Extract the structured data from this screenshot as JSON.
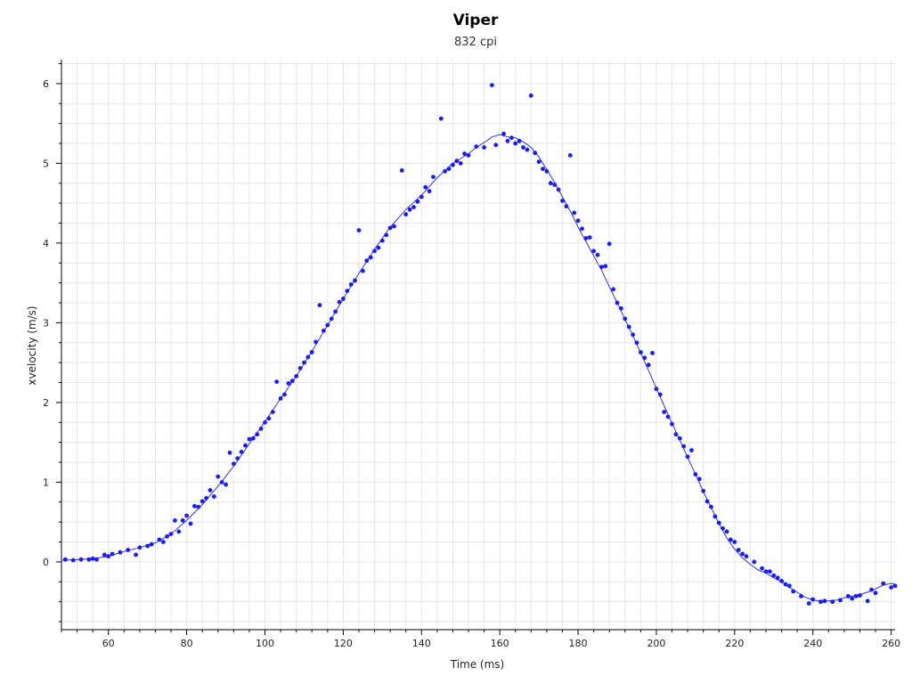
{
  "chart_data": {
    "type": "scatter",
    "title": "Viper",
    "subtitle": "832 cpi",
    "xlabel": "Time (ms)",
    "ylabel": "xvelocity (m/s)",
    "xlim": [
      48,
      261
    ],
    "ylim": [
      -0.85,
      6.3
    ],
    "xticks": [
      60,
      80,
      100,
      120,
      140,
      160,
      180,
      200,
      220,
      240,
      260
    ],
    "yticks": [
      0,
      1,
      2,
      3,
      4,
      5,
      6
    ],
    "grid": true,
    "colors": {
      "points": "#1a1aff",
      "line": "#3333cc",
      "grid": "#e6e6e6",
      "axis": "#000000"
    },
    "series": [
      {
        "type": "scatter",
        "points": [
          [
            49,
            0.03
          ],
          [
            51,
            0.02
          ],
          [
            53,
            0.03
          ],
          [
            55,
            0.03
          ],
          [
            56,
            0.04
          ],
          [
            57,
            0.03
          ],
          [
            59,
            0.09
          ],
          [
            60,
            0.07
          ],
          [
            61,
            0.1
          ],
          [
            63,
            0.12
          ],
          [
            65,
            0.15
          ],
          [
            67,
            0.09
          ],
          [
            68,
            0.18
          ],
          [
            70,
            0.2
          ],
          [
            71,
            0.22
          ],
          [
            73,
            0.28
          ],
          [
            74,
            0.25
          ],
          [
            75,
            0.32
          ],
          [
            76,
            0.35
          ],
          [
            77,
            0.52
          ],
          [
            78,
            0.38
          ],
          [
            79,
            0.52
          ],
          [
            80,
            0.58
          ],
          [
            81,
            0.48
          ],
          [
            82,
            0.7
          ],
          [
            83,
            0.69
          ],
          [
            84,
            0.76
          ],
          [
            85,
            0.8
          ],
          [
            86,
            0.9
          ],
          [
            87,
            0.82
          ],
          [
            88,
            1.07
          ],
          [
            89,
            1.0
          ],
          [
            90,
            0.97
          ],
          [
            91,
            1.37
          ],
          [
            92,
            1.23
          ],
          [
            93,
            1.3
          ],
          [
            94,
            1.38
          ],
          [
            95,
            1.46
          ],
          [
            96,
            1.54
          ],
          [
            97,
            1.55
          ],
          [
            98,
            1.6
          ],
          [
            99,
            1.67
          ],
          [
            100,
            1.75
          ],
          [
            101,
            1.8
          ],
          [
            102,
            1.88
          ],
          [
            103,
            2.26
          ],
          [
            104,
            2.05
          ],
          [
            105,
            2.1
          ],
          [
            106,
            2.24
          ],
          [
            107,
            2.27
          ],
          [
            108,
            2.33
          ],
          [
            109,
            2.43
          ],
          [
            110,
            2.5
          ],
          [
            111,
            2.57
          ],
          [
            112,
            2.63
          ],
          [
            113,
            2.76
          ],
          [
            114,
            3.22
          ],
          [
            115,
            2.9
          ],
          [
            116,
            2.97
          ],
          [
            117,
            3.05
          ],
          [
            118,
            3.14
          ],
          [
            119,
            3.26
          ],
          [
            120,
            3.3
          ],
          [
            121,
            3.4
          ],
          [
            122,
            3.48
          ],
          [
            123,
            3.53
          ],
          [
            124,
            4.16
          ],
          [
            125,
            3.65
          ],
          [
            126,
            3.78
          ],
          [
            127,
            3.82
          ],
          [
            128,
            3.9
          ],
          [
            129,
            3.94
          ],
          [
            130,
            4.03
          ],
          [
            131,
            4.1
          ],
          [
            132,
            4.19
          ],
          [
            133,
            4.21
          ],
          [
            135,
            4.91
          ],
          [
            136,
            4.36
          ],
          [
            137,
            4.42
          ],
          [
            138,
            4.45
          ],
          [
            139,
            4.52
          ],
          [
            140,
            4.58
          ],
          [
            141,
            4.7
          ],
          [
            142,
            4.65
          ],
          [
            143,
            4.83
          ],
          [
            145,
            5.56
          ],
          [
            146,
            4.9
          ],
          [
            147,
            4.93
          ],
          [
            148,
            4.98
          ],
          [
            149,
            5.03
          ],
          [
            150,
            5.0
          ],
          [
            151,
            5.12
          ],
          [
            152,
            5.1
          ],
          [
            154,
            5.21
          ],
          [
            156,
            5.2
          ],
          [
            158,
            5.98
          ],
          [
            159,
            5.23
          ],
          [
            161,
            5.37
          ],
          [
            162,
            5.28
          ],
          [
            163,
            5.32
          ],
          [
            164,
            5.25
          ],
          [
            165,
            5.28
          ],
          [
            166,
            5.2
          ],
          [
            167,
            5.17
          ],
          [
            168,
            5.85
          ],
          [
            169,
            5.13
          ],
          [
            170,
            5.02
          ],
          [
            171,
            4.93
          ],
          [
            172,
            4.9
          ],
          [
            173,
            4.75
          ],
          [
            174,
            4.73
          ],
          [
            175,
            4.67
          ],
          [
            176,
            4.53
          ],
          [
            177,
            4.46
          ],
          [
            178,
            5.1
          ],
          [
            179,
            4.38
          ],
          [
            180,
            4.28
          ],
          [
            181,
            4.18
          ],
          [
            182,
            4.06
          ],
          [
            183,
            4.07
          ],
          [
            184,
            3.9
          ],
          [
            185,
            3.85
          ],
          [
            186,
            3.7
          ],
          [
            187,
            3.71
          ],
          [
            188,
            3.99
          ],
          [
            189,
            3.42
          ],
          [
            190,
            3.25
          ],
          [
            191,
            3.18
          ],
          [
            192,
            3.05
          ],
          [
            193,
            2.95
          ],
          [
            194,
            2.85
          ],
          [
            195,
            2.75
          ],
          [
            196,
            2.63
          ],
          [
            197,
            2.56
          ],
          [
            198,
            2.47
          ],
          [
            199,
            2.62
          ],
          [
            200,
            2.17
          ],
          [
            201,
            2.1
          ],
          [
            202,
            1.88
          ],
          [
            203,
            1.82
          ],
          [
            204,
            1.73
          ],
          [
            205,
            1.6
          ],
          [
            206,
            1.55
          ],
          [
            207,
            1.45
          ],
          [
            208,
            1.32
          ],
          [
            209,
            1.4
          ],
          [
            210,
            1.1
          ],
          [
            211,
            1.04
          ],
          [
            212,
            0.89
          ],
          [
            213,
            0.76
          ],
          [
            214,
            0.69
          ],
          [
            215,
            0.57
          ],
          [
            216,
            0.49
          ],
          [
            217,
            0.42
          ],
          [
            218,
            0.38
          ],
          [
            219,
            0.28
          ],
          [
            220,
            0.25
          ],
          [
            221,
            0.15
          ],
          [
            222,
            0.1
          ],
          [
            223,
            0.07
          ],
          [
            225,
            0.0
          ],
          [
            227,
            -0.08
          ],
          [
            228,
            -0.12
          ],
          [
            229,
            -0.12
          ],
          [
            230,
            -0.17
          ],
          [
            231,
            -0.2
          ],
          [
            232,
            -0.24
          ],
          [
            233,
            -0.28
          ],
          [
            234,
            -0.3
          ],
          [
            235,
            -0.37
          ],
          [
            237,
            -0.43
          ],
          [
            239,
            -0.52
          ],
          [
            240,
            -0.47
          ],
          [
            242,
            -0.5
          ],
          [
            243,
            -0.49
          ],
          [
            245,
            -0.5
          ],
          [
            247,
            -0.48
          ],
          [
            249,
            -0.43
          ],
          [
            250,
            -0.46
          ],
          [
            251,
            -0.43
          ],
          [
            252,
            -0.42
          ],
          [
            254,
            -0.49
          ],
          [
            255,
            -0.35
          ],
          [
            256,
            -0.39
          ],
          [
            258,
            -0.27
          ],
          [
            260,
            -0.32
          ],
          [
            261,
            -0.3
          ]
        ]
      },
      {
        "type": "line",
        "points": [
          [
            48,
            0.02
          ],
          [
            52,
            0.03
          ],
          [
            56,
            0.04
          ],
          [
            60,
            0.07
          ],
          [
            64,
            0.13
          ],
          [
            68,
            0.18
          ],
          [
            72,
            0.24
          ],
          [
            76,
            0.35
          ],
          [
            80,
            0.52
          ],
          [
            84,
            0.72
          ],
          [
            88,
            0.95
          ],
          [
            92,
            1.2
          ],
          [
            96,
            1.48
          ],
          [
            100,
            1.76
          ],
          [
            104,
            2.05
          ],
          [
            108,
            2.33
          ],
          [
            112,
            2.64
          ],
          [
            116,
            2.97
          ],
          [
            120,
            3.3
          ],
          [
            124,
            3.62
          ],
          [
            128,
            3.92
          ],
          [
            132,
            4.2
          ],
          [
            136,
            4.42
          ],
          [
            140,
            4.6
          ],
          [
            144,
            4.82
          ],
          [
            148,
            5.0
          ],
          [
            150,
            5.06
          ],
          [
            152,
            5.12
          ],
          [
            154,
            5.2
          ],
          [
            156,
            5.26
          ],
          [
            158,
            5.33
          ],
          [
            160,
            5.36
          ],
          [
            162,
            5.33
          ],
          [
            164,
            5.32
          ],
          [
            166,
            5.27
          ],
          [
            168,
            5.2
          ],
          [
            170,
            5.08
          ],
          [
            172,
            4.92
          ],
          [
            174,
            4.76
          ],
          [
            176,
            4.58
          ],
          [
            178,
            4.4
          ],
          [
            180,
            4.2
          ],
          [
            182,
            4.02
          ],
          [
            184,
            3.84
          ],
          [
            186,
            3.66
          ],
          [
            188,
            3.45
          ],
          [
            190,
            3.25
          ],
          [
            192,
            3.04
          ],
          [
            194,
            2.84
          ],
          [
            196,
            2.62
          ],
          [
            198,
            2.4
          ],
          [
            200,
            2.18
          ],
          [
            202,
            1.96
          ],
          [
            204,
            1.74
          ],
          [
            206,
            1.53
          ],
          [
            208,
            1.31
          ],
          [
            210,
            1.1
          ],
          [
            212,
            0.88
          ],
          [
            214,
            0.68
          ],
          [
            216,
            0.48
          ],
          [
            218,
            0.3
          ],
          [
            220,
            0.16
          ],
          [
            222,
            0.05
          ],
          [
            224,
            -0.03
          ],
          [
            226,
            -0.1
          ],
          [
            228,
            -0.14
          ],
          [
            230,
            -0.2
          ],
          [
            232,
            -0.25
          ],
          [
            234,
            -0.32
          ],
          [
            236,
            -0.38
          ],
          [
            238,
            -0.44
          ],
          [
            240,
            -0.48
          ],
          [
            242,
            -0.49
          ],
          [
            244,
            -0.49
          ],
          [
            246,
            -0.48
          ],
          [
            248,
            -0.45
          ],
          [
            250,
            -0.43
          ],
          [
            252,
            -0.41
          ],
          [
            254,
            -0.38
          ],
          [
            256,
            -0.34
          ],
          [
            258,
            -0.29
          ],
          [
            260,
            -0.27
          ],
          [
            261,
            -0.28
          ]
        ]
      }
    ]
  }
}
